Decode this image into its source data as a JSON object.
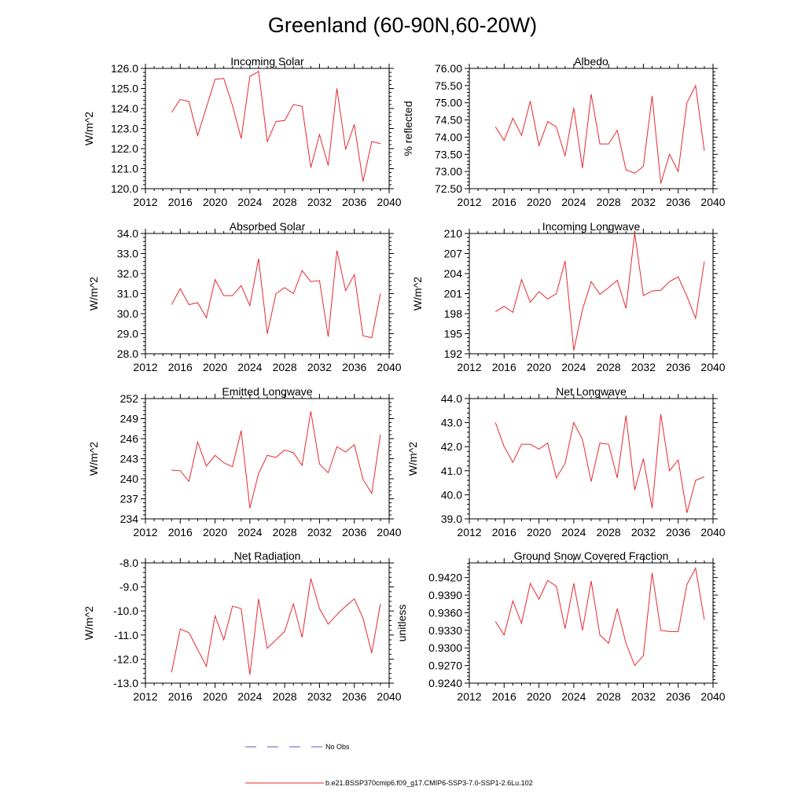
{
  "figure": {
    "title": "Greenland (60-90N,60-20W)"
  },
  "legend": {
    "entries": [
      {
        "label": "No Obs",
        "color": "#5b5bc8",
        "dash": true
      },
      {
        "label": "b.e21.BSSP370cmip6.f09_g17.CMIP6-SSP3-7.0-SSP1-2.6Lu.102",
        "color": "#e8282e",
        "dash": false
      }
    ]
  },
  "colors": {
    "series": "#e8282e",
    "axis": "#000000"
  },
  "chart_data": [
    {
      "type": "line",
      "title": "Incoming Solar",
      "ylabel": "W/m^2",
      "xlim": [
        2012,
        2040
      ],
      "ylim": [
        120,
        126
      ],
      "xticks": [
        2012,
        2016,
        2020,
        2024,
        2028,
        2032,
        2036,
        2040
      ],
      "yticks": [
        120,
        121,
        122,
        123,
        124,
        125,
        126
      ],
      "yticklabels": [
        "120.0",
        "121.0",
        "122.0",
        "123.0",
        "124.0",
        "125.0",
        "126.0"
      ],
      "x": [
        2015,
        2016,
        2017,
        2018,
        2019,
        2020,
        2021,
        2022,
        2023,
        2024,
        2025,
        2026,
        2027,
        2028,
        2029,
        2030,
        2031,
        2032,
        2033,
        2034,
        2035,
        2036,
        2037,
        2038,
        2039
      ],
      "series": [
        {
          "values": [
            123.8,
            124.45,
            124.35,
            122.65,
            124.05,
            125.45,
            125.5,
            124.15,
            122.5,
            125.6,
            125.85,
            122.35,
            123.35,
            123.4,
            124.2,
            124.1,
            121.05,
            122.7,
            121.15,
            125.0,
            121.95,
            123.2,
            120.35,
            122.35,
            122.25
          ]
        }
      ]
    },
    {
      "type": "line",
      "title": "Albedo",
      "ylabel": "% reflected",
      "xlim": [
        2012,
        2040
      ],
      "ylim": [
        72.5,
        76.0
      ],
      "xticks": [
        2012,
        2016,
        2020,
        2024,
        2028,
        2032,
        2036,
        2040
      ],
      "yticks": [
        72.5,
        73.0,
        73.5,
        74.0,
        74.5,
        75.0,
        75.5,
        76.0
      ],
      "yticklabels": [
        "72.50",
        "73.00",
        "73.50",
        "74.00",
        "74.50",
        "75.00",
        "75.50",
        "76.00"
      ],
      "x": [
        2015,
        2016,
        2017,
        2018,
        2019,
        2020,
        2021,
        2022,
        2023,
        2024,
        2025,
        2026,
        2027,
        2028,
        2029,
        2030,
        2031,
        2032,
        2033,
        2034,
        2035,
        2036,
        2037,
        2038,
        2039
      ],
      "series": [
        {
          "values": [
            74.3,
            73.9,
            74.55,
            74.05,
            75.05,
            73.75,
            74.45,
            74.3,
            73.45,
            74.85,
            73.1,
            75.25,
            73.8,
            73.8,
            74.2,
            73.05,
            72.95,
            73.15,
            75.2,
            72.65,
            73.5,
            73.0,
            75.0,
            75.5,
            73.6
          ]
        }
      ]
    },
    {
      "type": "line",
      "title": "Absorbed Solar",
      "ylabel": "W/m^2",
      "xlim": [
        2012,
        2040
      ],
      "ylim": [
        28,
        34
      ],
      "xticks": [
        2012,
        2016,
        2020,
        2024,
        2028,
        2032,
        2036,
        2040
      ],
      "yticks": [
        28,
        29,
        30,
        31,
        32,
        33,
        34
      ],
      "yticklabels": [
        "28.0",
        "29.0",
        "30.0",
        "31.0",
        "32.0",
        "33.0",
        "34.0"
      ],
      "x": [
        2015,
        2016,
        2017,
        2018,
        2019,
        2020,
        2021,
        2022,
        2023,
        2024,
        2025,
        2026,
        2027,
        2028,
        2029,
        2030,
        2031,
        2032,
        2033,
        2034,
        2035,
        2036,
        2037,
        2038,
        2039
      ],
      "series": [
        {
          "values": [
            30.45,
            31.25,
            30.45,
            30.55,
            29.8,
            31.7,
            30.9,
            30.9,
            31.4,
            30.4,
            32.75,
            29.0,
            31.0,
            31.3,
            31.0,
            32.15,
            31.6,
            31.65,
            28.85,
            33.15,
            31.15,
            31.95,
            28.9,
            28.8,
            31.0
          ]
        }
      ]
    },
    {
      "type": "line",
      "title": "Incoming Longwave",
      "ylabel": "W/m^2",
      "xlim": [
        2012,
        2040
      ],
      "ylim": [
        192,
        210
      ],
      "xticks": [
        2012,
        2016,
        2020,
        2024,
        2028,
        2032,
        2036,
        2040
      ],
      "yticks": [
        192,
        195,
        198,
        201,
        204,
        207,
        210
      ],
      "yticklabels": [
        "192",
        "195",
        "198",
        "201",
        "204",
        "207",
        "210"
      ],
      "x": [
        2015,
        2016,
        2017,
        2018,
        2019,
        2020,
        2021,
        2022,
        2023,
        2024,
        2025,
        2026,
        2027,
        2028,
        2029,
        2030,
        2031,
        2032,
        2033,
        2034,
        2035,
        2036,
        2037,
        2038,
        2039
      ],
      "series": [
        {
          "values": [
            198.3,
            199.1,
            198.2,
            203.1,
            199.7,
            201.3,
            200.2,
            201.0,
            205.9,
            192.5,
            198.6,
            202.8,
            200.9,
            201.9,
            203.0,
            198.8,
            210.1,
            200.7,
            201.4,
            201.5,
            202.8,
            203.5,
            200.6,
            197.3,
            205.8
          ]
        }
      ]
    },
    {
      "type": "line",
      "title": "Emitted Longwave",
      "ylabel": "W/m^2",
      "xlim": [
        2012,
        2040
      ],
      "ylim": [
        234,
        252
      ],
      "xticks": [
        2012,
        2016,
        2020,
        2024,
        2028,
        2032,
        2036,
        2040
      ],
      "yticks": [
        234,
        237,
        240,
        243,
        246,
        249,
        252
      ],
      "yticklabels": [
        "234",
        "237",
        "240",
        "243",
        "246",
        "249",
        "252"
      ],
      "x": [
        2015,
        2016,
        2017,
        2018,
        2019,
        2020,
        2021,
        2022,
        2023,
        2024,
        2025,
        2026,
        2027,
        2028,
        2029,
        2030,
        2031,
        2032,
        2033,
        2034,
        2035,
        2036,
        2037,
        2038,
        2039
      ],
      "series": [
        {
          "values": [
            241.3,
            241.2,
            239.6,
            245.5,
            241.9,
            243.5,
            242.4,
            241.8,
            247.2,
            235.6,
            240.8,
            243.5,
            243.2,
            244.3,
            243.9,
            242.0,
            250.1,
            242.2,
            240.9,
            244.8,
            244.0,
            245.1,
            239.9,
            237.8,
            246.6
          ]
        }
      ]
    },
    {
      "type": "line",
      "title": "Net Longwave",
      "ylabel": "W/m^2",
      "xlim": [
        2012,
        2040
      ],
      "ylim": [
        39,
        44
      ],
      "xticks": [
        2012,
        2016,
        2020,
        2024,
        2028,
        2032,
        2036,
        2040
      ],
      "yticks": [
        39,
        40,
        41,
        42,
        43,
        44
      ],
      "yticklabels": [
        "39.0",
        "40.0",
        "41.0",
        "42.0",
        "43.0",
        "44.0"
      ],
      "x": [
        2015,
        2016,
        2017,
        2018,
        2019,
        2020,
        2021,
        2022,
        2023,
        2024,
        2025,
        2026,
        2027,
        2028,
        2029,
        2030,
        2031,
        2032,
        2033,
        2034,
        2035,
        2036,
        2037,
        2038,
        2039
      ],
      "series": [
        {
          "values": [
            43.0,
            42.0,
            41.35,
            42.1,
            42.1,
            41.9,
            42.15,
            40.7,
            41.3,
            43.0,
            42.3,
            40.55,
            42.15,
            42.1,
            40.7,
            43.3,
            40.2,
            41.5,
            39.45,
            43.35,
            41.0,
            41.45,
            39.25,
            40.6,
            40.75
          ]
        }
      ]
    },
    {
      "type": "line",
      "title": "Net Radiation",
      "ylabel": "W/m^2",
      "xlim": [
        2012,
        2040
      ],
      "ylim": [
        -13,
        -8
      ],
      "xticks": [
        2012,
        2016,
        2020,
        2024,
        2028,
        2032,
        2036,
        2040
      ],
      "yticks": [
        -13,
        -12,
        -11,
        -10,
        -9,
        -8
      ],
      "yticklabels": [
        "-13.0",
        "-12.0",
        "-11.0",
        "-10.0",
        "-9.0",
        "-8.0"
      ],
      "x": [
        2015,
        2016,
        2017,
        2018,
        2019,
        2020,
        2021,
        2022,
        2023,
        2024,
        2025,
        2026,
        2027,
        2028,
        2029,
        2030,
        2031,
        2032,
        2033,
        2034,
        2035,
        2036,
        2037,
        2038,
        2039
      ],
      "series": [
        {
          "values": [
            -12.55,
            -10.75,
            -10.9,
            -11.6,
            -12.3,
            -10.2,
            -11.2,
            -9.8,
            -9.9,
            -12.65,
            -9.5,
            -11.55,
            -11.2,
            -10.85,
            -9.7,
            -11.1,
            -8.65,
            -9.9,
            -10.55,
            -10.15,
            -9.8,
            -9.5,
            -10.3,
            -11.75,
            -9.7
          ]
        }
      ]
    },
    {
      "type": "line",
      "title": "Ground Snow Covered Fraction",
      "ylabel": "unitless",
      "xlim": [
        2012,
        2040
      ],
      "ylim": [
        0.924,
        0.9445
      ],
      "xticks": [
        2012,
        2016,
        2020,
        2024,
        2028,
        2032,
        2036,
        2040
      ],
      "yticks": [
        0.924,
        0.927,
        0.93,
        0.933,
        0.936,
        0.939,
        0.942
      ],
      "yticklabels": [
        "0.9240",
        "0.9270",
        "0.9300",
        "0.9330",
        "0.9360",
        "0.9390",
        "0.9420"
      ],
      "x": [
        2015,
        2016,
        2017,
        2018,
        2019,
        2020,
        2021,
        2022,
        2023,
        2024,
        2025,
        2026,
        2027,
        2028,
        2029,
        2030,
        2031,
        2032,
        2033,
        2034,
        2035,
        2036,
        2037,
        2038,
        2039
      ],
      "series": [
        {
          "values": [
            0.9345,
            0.9322,
            0.938,
            0.9342,
            0.941,
            0.9383,
            0.9415,
            0.9405,
            0.9333,
            0.941,
            0.933,
            0.9414,
            0.9322,
            0.9308,
            0.9367,
            0.9308,
            0.927,
            0.9287,
            0.9428,
            0.933,
            0.9328,
            0.9328,
            0.9408,
            0.9436,
            0.9348
          ]
        }
      ]
    }
  ]
}
